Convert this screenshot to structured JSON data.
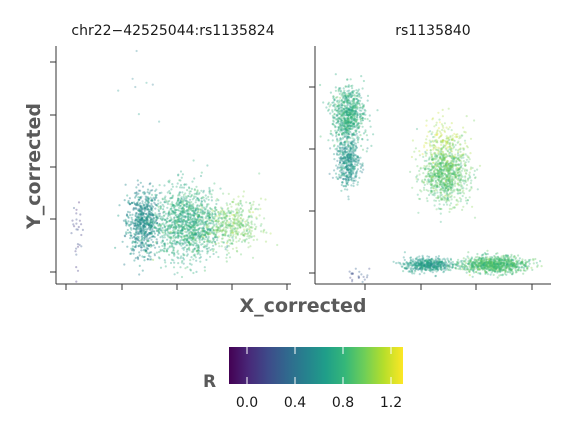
{
  "chart_data": {
    "type": "scatter",
    "xlabel": "X_corrected",
    "ylabel": "Y_corrected",
    "color_scale": {
      "title": "R",
      "palette": "viridis",
      "range": [
        -0.15,
        1.3
      ],
      "ticks": [
        "0.0",
        "0.4",
        "0.8",
        "1.2"
      ],
      "tick_values": [
        0.0,
        0.4,
        0.8,
        1.2
      ],
      "colors": [
        "#440154",
        "#482878",
        "#3e4a89",
        "#31688e",
        "#26828e",
        "#1f9e89",
        "#35b779",
        "#6ece58",
        "#b5de2b",
        "#fde725"
      ]
    },
    "panels": [
      {
        "title": "chr22−42525044:rs1135824",
        "xlim": [
          0,
          1
        ],
        "ylim": [
          0,
          1
        ],
        "clusters": [
          {
            "x": 0.09,
            "y": 0.22,
            "sx": 0.012,
            "sy": 0.08,
            "n": 28,
            "r": 0.15,
            "alpha": 0.35
          },
          {
            "x": 0.37,
            "y": 0.26,
            "sx": 0.035,
            "sy": 0.07,
            "n": 650,
            "r": 0.55,
            "alpha": 0.4
          },
          {
            "x": 0.56,
            "y": 0.25,
            "sx": 0.07,
            "sy": 0.075,
            "n": 1300,
            "r": 0.75,
            "alpha": 0.35
          },
          {
            "x": 0.75,
            "y": 0.25,
            "sx": 0.06,
            "sy": 0.05,
            "n": 450,
            "r": 0.95,
            "alpha": 0.3
          },
          {
            "x": 0.38,
            "y": 0.82,
            "sx": 0.05,
            "sy": 0.1,
            "n": 8,
            "r": 0.6,
            "alpha": 0.3
          }
        ]
      },
      {
        "title": "rs1135840",
        "xlim": [
          0,
          1
        ],
        "ylim": [
          0,
          1
        ],
        "clusters": [
          {
            "x": 0.14,
            "y": 0.71,
            "sx": 0.035,
            "sy": 0.06,
            "n": 800,
            "r": 0.75,
            "alpha": 0.35
          },
          {
            "x": 0.14,
            "y": 0.51,
            "sx": 0.025,
            "sy": 0.05,
            "n": 450,
            "r": 0.6,
            "alpha": 0.35
          },
          {
            "x": 0.55,
            "y": 0.46,
            "sx": 0.05,
            "sy": 0.06,
            "n": 1000,
            "r": 0.9,
            "alpha": 0.3
          },
          {
            "x": 0.55,
            "y": 0.6,
            "sx": 0.05,
            "sy": 0.05,
            "n": 180,
            "r": 1.1,
            "alpha": 0.3
          },
          {
            "x": 0.48,
            "y": 0.08,
            "sx": 0.05,
            "sy": 0.015,
            "n": 500,
            "r": 0.65,
            "alpha": 0.35
          },
          {
            "x": 0.76,
            "y": 0.08,
            "sx": 0.07,
            "sy": 0.018,
            "n": 900,
            "r": 0.85,
            "alpha": 0.35
          },
          {
            "x": 0.17,
            "y": 0.04,
            "sx": 0.03,
            "sy": 0.012,
            "n": 20,
            "r": 0.2,
            "alpha": 0.35
          }
        ]
      }
    ]
  }
}
